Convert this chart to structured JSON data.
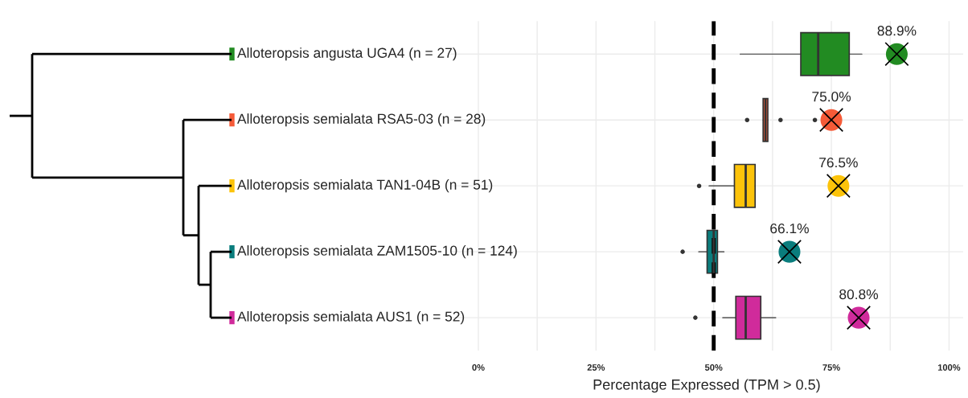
{
  "chart_data": {
    "type": "box",
    "orientation": "horizontal",
    "xlabel": "Percentage Expressed (TPM > 0.5)",
    "categories": [
      "Alloteropsis angusta UGA4 (n = 27)",
      "Alloteropsis semialata RSA5-03 (n = 28)",
      "Alloteropsis semialata TAN1-04B (n = 51)",
      "Alloteropsis semialata ZAM1505-10 (n = 124)",
      "Alloteropsis semialata AUS1 (n = 52)"
    ],
    "colors": [
      "#228b22",
      "#f55b38",
      "#fcc30a",
      "#0a7d7d",
      "#d02b9b"
    ],
    "boxes": [
      {
        "low": 55.6,
        "q1": 68.5,
        "median": 72.2,
        "q3": 78.8,
        "high": 81.5
      },
      {
        "low": 60.5,
        "q1": 60.5,
        "median": 61.0,
        "q3": 61.5,
        "high": 61.5,
        "outliers": [
          57.1,
          64.2,
          71.5
        ]
      },
      {
        "low": 49.0,
        "q1": 54.4,
        "median": 56.8,
        "q3": 58.8,
        "high": 58.8,
        "outliers": [
          46.9
        ]
      },
      {
        "low": 46.8,
        "q1": 48.6,
        "median": 50.0,
        "q3": 50.8,
        "high": 52.2,
        "outliers": [
          43.4
        ]
      },
      {
        "low": 51.9,
        "q1": 54.7,
        "median": 56.8,
        "q3": 60.0,
        "high": 63.2,
        "outliers": [
          46.1
        ]
      }
    ],
    "series": [
      {
        "type": "scatter",
        "values": [
          88.9,
          75.0,
          76.5,
          66.1,
          80.8
        ],
        "value_labels": [
          "88.9%",
          "75.0%",
          "76.5%",
          "66.1%",
          "80.8%"
        ],
        "colors": [
          "#228b22",
          "#f55b38",
          "#fcc30a",
          "#0a7d7d",
          "#d02b9b"
        ],
        "marker": "circle"
      }
    ],
    "xlim": [
      -6,
      103
    ],
    "xticks": [
      {
        "value": 0,
        "label": "0%"
      },
      {
        "value": 12.5,
        "label": null
      },
      {
        "value": 25,
        "label": "25%"
      },
      {
        "value": 37.5,
        "label": null
      },
      {
        "value": 50,
        "label": "50%"
      },
      {
        "value": 62.5,
        "label": null
      },
      {
        "value": 75,
        "label": "75%"
      },
      {
        "value": 87.5,
        "label": null
      },
      {
        "value": 100,
        "label": "100%"
      }
    ],
    "ref_lines": [
      {
        "axis": "x",
        "value": 50,
        "color": "#000000",
        "line_style": "dashed"
      }
    ],
    "grid": true
  }
}
